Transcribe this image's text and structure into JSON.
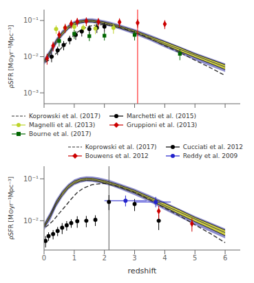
{
  "chart_data": [
    {
      "type": "scatter",
      "ylabel": "ρSFR [M⊙yr⁻¹Mpc⁻³]",
      "log": "y",
      "xlim": [
        0,
        6.5
      ],
      "xticks": [
        0,
        1,
        2,
        3,
        4,
        5,
        6
      ],
      "ylim": [
        0.0005,
        0.2
      ],
      "yticks": [
        {
          "value": 0.001,
          "label": "10⁻³"
        },
        {
          "value": 0.01,
          "label": "10⁻²"
        },
        {
          "value": 0.1,
          "label": "10⁻¹"
        }
      ],
      "grid": false,
      "legend": "lower left",
      "tick_labels": "y",
      "series": [
        {
          "type": "band",
          "color": "#7070c0",
          "x": [
            0.01,
            0.1,
            0.2,
            0.4,
            0.6,
            0.8,
            1.0,
            1.2,
            1.4,
            1.6,
            1.8,
            2.0,
            2.2,
            2.5,
            3.0,
            3.5,
            4.0,
            4.5,
            5.0,
            5.5,
            6.0
          ],
          "lower": [
            0.006,
            0.008,
            0.01,
            0.021,
            0.036,
            0.055,
            0.071,
            0.081,
            0.086,
            0.085,
            0.08,
            0.074,
            0.068,
            0.057,
            0.041,
            0.028,
            0.018,
            0.012,
            0.008,
            0.0055,
            0.0038
          ],
          "upper": [
            0.009,
            0.012,
            0.016,
            0.032,
            0.053,
            0.076,
            0.097,
            0.109,
            0.115,
            0.114,
            0.108,
            0.1,
            0.092,
            0.078,
            0.058,
            0.041,
            0.028,
            0.019,
            0.013,
            0.0092,
            0.0065
          ]
        },
        {
          "type": "band",
          "color": "#dddd20",
          "x": [
            0.01,
            0.1,
            0.2,
            0.4,
            0.6,
            0.8,
            1.0,
            1.2,
            1.4,
            1.6,
            1.8,
            2.0,
            2.2,
            2.5,
            3.0,
            3.5,
            4.0,
            4.5,
            5.0,
            5.5,
            6.0
          ],
          "lower": [
            0.007,
            0.009,
            0.012,
            0.024,
            0.04,
            0.06,
            0.077,
            0.087,
            0.092,
            0.091,
            0.086,
            0.08,
            0.073,
            0.062,
            0.046,
            0.031,
            0.021,
            0.014,
            0.0095,
            0.0065,
            0.0044
          ],
          "upper": [
            0.008,
            0.0105,
            0.014,
            0.028,
            0.047,
            0.069,
            0.088,
            0.099,
            0.104,
            0.103,
            0.097,
            0.091,
            0.083,
            0.071,
            0.053,
            0.037,
            0.026,
            0.018,
            0.012,
            0.0085,
            0.006
          ]
        },
        {
          "type": "line",
          "color": "#444444",
          "x": [
            0.01,
            0.1,
            0.2,
            0.4,
            0.6,
            0.8,
            1.0,
            1.2,
            1.4,
            1.6,
            1.8,
            2.0,
            2.2,
            2.5,
            3.0,
            3.5,
            4.0,
            4.5,
            5.0,
            5.5,
            6.0
          ],
          "values": [
            0.0075,
            0.0095,
            0.013,
            0.026,
            0.044,
            0.064,
            0.082,
            0.092,
            0.097,
            0.096,
            0.091,
            0.085,
            0.078,
            0.066,
            0.049,
            0.034,
            0.023,
            0.016,
            0.011,
            0.0075,
            0.0052
          ]
        },
        {
          "type": "line",
          "color": "#222222",
          "x": [
            0.01,
            0.1,
            0.2,
            0.4,
            0.6,
            0.8,
            1.0,
            1.2,
            1.4,
            1.6,
            1.8,
            2.0,
            2.2,
            2.5,
            3.0,
            3.5,
            4.0,
            4.5,
            5.0,
            5.5,
            6.0
          ],
          "values": [
            0.007,
            0.009,
            0.012,
            0.024,
            0.04,
            0.06,
            0.077,
            0.087,
            0.092,
            0.091,
            0.086,
            0.08,
            0.073,
            0.062,
            0.046,
            0.031,
            0.021,
            0.014,
            0.0095,
            0.0065,
            0.0044
          ]
        },
        {
          "type": "line",
          "color": "#222222",
          "x": [
            0.01,
            0.1,
            0.2,
            0.4,
            0.6,
            0.8,
            1.0,
            1.2,
            1.4,
            1.6,
            1.8,
            2.0,
            2.2,
            2.5,
            3.0,
            3.5,
            4.0,
            4.5,
            5.0,
            5.5,
            6.0
          ],
          "values": [
            0.008,
            0.0105,
            0.014,
            0.028,
            0.047,
            0.069,
            0.088,
            0.099,
            0.104,
            0.103,
            0.097,
            0.091,
            0.083,
            0.071,
            0.053,
            0.037,
            0.026,
            0.018,
            0.012,
            0.0085,
            0.006
          ]
        },
        {
          "name": "Koprowski et al. (2017)",
          "type": "line",
          "line_style": "dashed",
          "color": "#333333",
          "x": [
            0.05,
            0.15,
            0.3,
            0.5,
            0.7,
            0.9,
            1.1,
            1.3,
            1.6,
            2.0,
            2.5,
            3.0,
            3.5,
            4.0,
            4.5,
            5.0,
            5.5,
            6.0
          ],
          "values": [
            0.007,
            0.008,
            0.01,
            0.015,
            0.022,
            0.033,
            0.047,
            0.06,
            0.073,
            0.078,
            0.065,
            0.048,
            0.032,
            0.02,
            0.013,
            0.008,
            0.005,
            0.003
          ]
        },
        {
          "name": "Marchetti et al. (2015)",
          "type": "scatter",
          "marker": "circle",
          "color": "#000000",
          "x": [
            0.25,
            0.45,
            0.65,
            0.85,
            1.05,
            1.25,
            1.5,
            1.75,
            2.0
          ],
          "values": [
            0.01,
            0.015,
            0.021,
            0.03,
            0.04,
            0.05,
            0.058,
            0.063,
            0.068
          ],
          "error_lo": [
            0.003,
            0.004,
            0.006,
            0.008,
            0.011,
            0.014,
            0.016,
            0.018,
            0.02
          ],
          "error_hi": [
            0.003,
            0.004,
            0.006,
            0.008,
            0.011,
            0.014,
            0.016,
            0.018,
            0.02
          ]
        },
        {
          "name": "Magnelli et al. (2013)",
          "type": "scatter",
          "marker": "circle",
          "color": "#bdd42a",
          "x": [
            0.4,
            0.7,
            1.0,
            1.3,
            1.7,
            2.3
          ],
          "values": [
            0.058,
            0.063,
            0.067,
            0.063,
            0.06,
            0.063
          ],
          "error_lo": [
            0.015,
            0.015,
            0.016,
            0.015,
            0.018,
            0.02
          ],
          "error_hi": [
            0.015,
            0.015,
            0.016,
            0.015,
            0.018,
            0.02
          ]
        },
        {
          "name": "Gruppioni et al. (2013)",
          "type": "scatter",
          "marker": "diamond",
          "color": "#cc0000",
          "x": [
            0.1,
            0.3,
            0.5,
            0.7,
            0.9,
            1.1,
            1.4,
            1.8,
            2.5,
            3.1,
            4.0
          ],
          "values": [
            0.009,
            0.02,
            0.04,
            0.063,
            0.082,
            0.093,
            0.096,
            0.092,
            0.09,
            0.086,
            0.08
          ],
          "error_lo": [
            0.003,
            0.006,
            0.012,
            0.018,
            0.022,
            0.025,
            0.026,
            0.025,
            0.025,
            0.023,
            0.022
          ],
          "error_hi": [
            0.003,
            0.006,
            0.012,
            0.018,
            0.022,
            0.025,
            0.026,
            0.025,
            0.025,
            0.023,
            0.022
          ]
        },
        {
          "name": "Bourne et al. (2017)",
          "type": "scatter",
          "marker": "square",
          "color": "#006600",
          "x": [
            0.5,
            1.0,
            1.5,
            2.0,
            3.0,
            4.5
          ],
          "values": [
            0.027,
            0.043,
            0.037,
            0.038,
            0.04,
            0.012
          ],
          "error_lo": [
            0.008,
            0.012,
            0.01,
            0.01,
            0.012,
            0.004
          ],
          "error_hi": [
            0.008,
            0.012,
            0.01,
            0.01,
            0.012,
            0.004
          ]
        },
        {
          "type": "vline",
          "color": "red",
          "x": [
            3.1
          ]
        }
      ]
    },
    {
      "type": "scatter",
      "xlabel": "redshift",
      "ylabel": "ρSFR [M⊙yr⁻¹Mpc⁻³]",
      "log": "y",
      "xlim": [
        0,
        6.5
      ],
      "xticks": [
        0,
        1,
        2,
        3,
        4,
        5,
        6
      ],
      "ylim": [
        0.002,
        0.2
      ],
      "yticks": [
        {
          "value": 0.01,
          "label": "10⁻²"
        },
        {
          "value": 0.1,
          "label": "10⁻¹"
        }
      ],
      "grid": false,
      "legend": "upper right",
      "series": [
        {
          "type": "band",
          "color": "#7070c0",
          "x": [
            0.01,
            0.1,
            0.2,
            0.4,
            0.6,
            0.8,
            1.0,
            1.2,
            1.4,
            1.6,
            1.8,
            2.0,
            2.2,
            2.5,
            3.0,
            3.5,
            4.0,
            4.5,
            5.0,
            5.5,
            6.0
          ],
          "lower": [
            0.006,
            0.008,
            0.01,
            0.021,
            0.036,
            0.055,
            0.071,
            0.081,
            0.086,
            0.085,
            0.08,
            0.074,
            0.068,
            0.057,
            0.041,
            0.028,
            0.018,
            0.012,
            0.008,
            0.0055,
            0.0038
          ],
          "upper": [
            0.009,
            0.012,
            0.016,
            0.032,
            0.053,
            0.076,
            0.097,
            0.109,
            0.115,
            0.114,
            0.108,
            0.1,
            0.092,
            0.078,
            0.058,
            0.041,
            0.028,
            0.019,
            0.013,
            0.0092,
            0.0065
          ]
        },
        {
          "type": "band",
          "color": "#dddd20",
          "x": [
            0.01,
            0.1,
            0.2,
            0.4,
            0.6,
            0.8,
            1.0,
            1.2,
            1.4,
            1.6,
            1.8,
            2.0,
            2.2,
            2.5,
            3.0,
            3.5,
            4.0,
            4.5,
            5.0,
            5.5,
            6.0
          ],
          "lower": [
            0.007,
            0.009,
            0.012,
            0.024,
            0.04,
            0.06,
            0.077,
            0.087,
            0.092,
            0.091,
            0.086,
            0.08,
            0.073,
            0.062,
            0.046,
            0.031,
            0.021,
            0.014,
            0.0095,
            0.0065,
            0.0044
          ],
          "upper": [
            0.008,
            0.0105,
            0.014,
            0.028,
            0.047,
            0.069,
            0.088,
            0.099,
            0.104,
            0.103,
            0.097,
            0.091,
            0.083,
            0.071,
            0.053,
            0.037,
            0.026,
            0.018,
            0.012,
            0.0085,
            0.006
          ]
        },
        {
          "type": "line",
          "color": "#444444",
          "x": [
            0.01,
            0.1,
            0.2,
            0.4,
            0.6,
            0.8,
            1.0,
            1.2,
            1.4,
            1.6,
            1.8,
            2.0,
            2.2,
            2.5,
            3.0,
            3.5,
            4.0,
            4.5,
            5.0,
            5.5,
            6.0
          ],
          "values": [
            0.0075,
            0.0095,
            0.013,
            0.026,
            0.044,
            0.064,
            0.082,
            0.092,
            0.097,
            0.096,
            0.091,
            0.085,
            0.078,
            0.066,
            0.049,
            0.034,
            0.023,
            0.016,
            0.011,
            0.0075,
            0.0052
          ]
        },
        {
          "type": "line",
          "color": "#222222",
          "x": [
            0.01,
            0.1,
            0.2,
            0.4,
            0.6,
            0.8,
            1.0,
            1.2,
            1.4,
            1.6,
            1.8,
            2.0,
            2.2,
            2.5,
            3.0,
            3.5,
            4.0,
            4.5,
            5.0,
            5.5,
            6.0
          ],
          "values": [
            0.007,
            0.009,
            0.012,
            0.024,
            0.04,
            0.06,
            0.077,
            0.087,
            0.092,
            0.091,
            0.086,
            0.08,
            0.073,
            0.062,
            0.046,
            0.031,
            0.021,
            0.014,
            0.0095,
            0.0065,
            0.0044
          ]
        },
        {
          "type": "line",
          "color": "#222222",
          "x": [
            0.01,
            0.1,
            0.2,
            0.4,
            0.6,
            0.8,
            1.0,
            1.2,
            1.4,
            1.6,
            1.8,
            2.0,
            2.2,
            2.5,
            3.0,
            3.5,
            4.0,
            4.5,
            5.0,
            5.5,
            6.0
          ],
          "values": [
            0.008,
            0.0105,
            0.014,
            0.028,
            0.047,
            0.069,
            0.088,
            0.099,
            0.104,
            0.103,
            0.097,
            0.091,
            0.083,
            0.071,
            0.053,
            0.037,
            0.026,
            0.018,
            0.012,
            0.0085,
            0.006
          ]
        },
        {
          "name": "Koprowski et al. (2017)",
          "type": "line",
          "line_style": "dashed",
          "color": "#333333",
          "x": [
            0.05,
            0.15,
            0.3,
            0.5,
            0.7,
            0.9,
            1.1,
            1.3,
            1.6,
            2.0,
            2.5,
            3.0,
            3.5,
            4.0,
            4.5,
            5.0,
            5.5,
            6.0
          ],
          "values": [
            0.007,
            0.008,
            0.01,
            0.015,
            0.022,
            0.033,
            0.047,
            0.06,
            0.073,
            0.078,
            0.065,
            0.048,
            0.032,
            0.02,
            0.013,
            0.008,
            0.005,
            0.003
          ]
        },
        {
          "name": "Cucciati et al. 2012",
          "type": "scatter",
          "marker": "circle",
          "color": "#000000",
          "x": [
            0.05,
            0.15,
            0.3,
            0.45,
            0.6,
            0.75,
            0.9,
            1.1,
            1.4,
            1.7,
            2.15,
            3.0,
            3.8
          ],
          "values": [
            0.0033,
            0.0043,
            0.0048,
            0.0057,
            0.0068,
            0.0078,
            0.0088,
            0.0098,
            0.01,
            0.0105,
            0.028,
            0.025,
            0.01
          ],
          "error_lo": [
            0.001,
            0.001,
            0.0012,
            0.0014,
            0.002,
            0.002,
            0.002,
            0.003,
            0.003,
            0.003,
            0.01,
            0.008,
            0.004
          ],
          "error_hi": [
            0.001,
            0.001,
            0.0012,
            0.0014,
            0.002,
            0.002,
            0.002,
            0.003,
            0.003,
            0.003,
            0.013,
            0.008,
            0.004
          ]
        },
        {
          "name": "Bouwens et al. 2012",
          "type": "scatter",
          "marker": "diamond",
          "color": "#cc0000",
          "x": [
            3.8,
            4.9
          ],
          "values": [
            0.017,
            0.0085
          ],
          "error_lo": [
            0.006,
            0.003
          ],
          "error_hi": [
            0.006,
            0.003
          ]
        },
        {
          "name": "Reddy et al. 2009",
          "type": "scatter",
          "marker": "circle",
          "color": "#2222cc",
          "x": [
            2.7,
            3.7
          ],
          "values": [
            0.03,
            0.028
          ],
          "error_lo": [
            0.008,
            0.007
          ],
          "error_hi": [
            0.01,
            0.009
          ],
          "xerr_lo": [
            0.7,
            0.7
          ],
          "xerr_hi": [
            0.7,
            0.5
          ]
        },
        {
          "type": "vline",
          "color": "#555555",
          "x": [
            2.15
          ]
        }
      ]
    }
  ]
}
